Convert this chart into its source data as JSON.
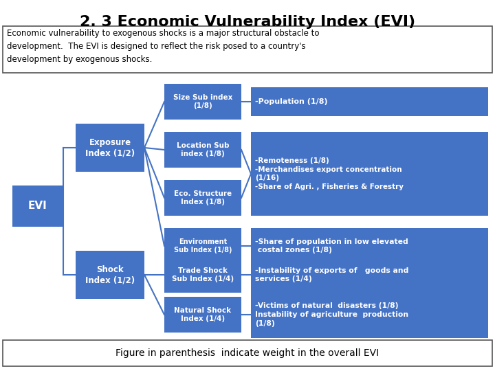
{
  "title": "2. 3 Economic Vulnerability Index (EVI)",
  "intro_text": "Economic vulnerability to exogenous shocks is a major structural obstacle to\ndevelopment.  The EVI is designed to reflect the risk posed to a country's\ndevelopment by exogenous shocks.",
  "footer_text": "Figure in parenthesis  indicate weight in the overall EVI",
  "box_color": "#4472C4",
  "text_color_white": "#FFFFFF",
  "text_color_black": "#000000",
  "bg_color": "#FFFFFF"
}
